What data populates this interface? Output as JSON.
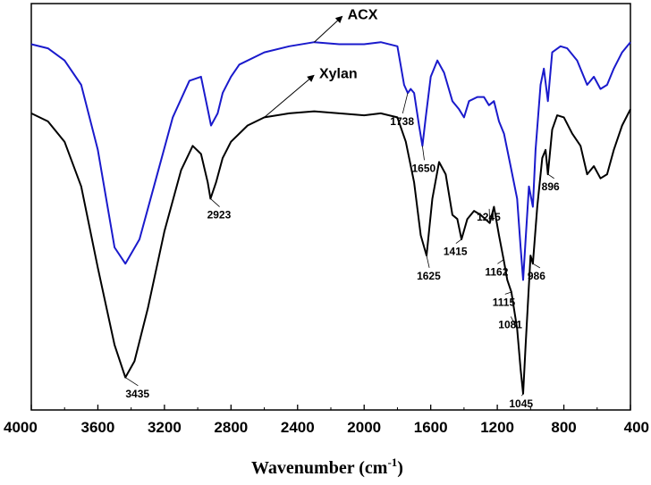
{
  "chart_data": {
    "type": "line",
    "xlabel": "Wavenumber (cm",
    "xlabel_sup": "-1",
    "xlabel_close": ")",
    "xlim": [
      4000,
      400
    ],
    "x_reversed": true,
    "y_axis_visible": false,
    "grid": false,
    "x_ticks": [
      4000,
      3600,
      3200,
      2800,
      2400,
      2000,
      1600,
      1200,
      800,
      400
    ],
    "x_tick_labels": [
      "4000",
      "3600",
      "3200",
      "2800",
      "2400",
      "2000",
      "1600",
      "1200",
      "800",
      "400"
    ],
    "series": [
      {
        "name": "ACX",
        "color": "#1a1acc",
        "points": [
          [
            4000,
            0.9
          ],
          [
            3900,
            0.89
          ],
          [
            3800,
            0.86
          ],
          [
            3700,
            0.8
          ],
          [
            3600,
            0.64
          ],
          [
            3500,
            0.4
          ],
          [
            3435,
            0.36
          ],
          [
            3350,
            0.42
          ],
          [
            3250,
            0.57
          ],
          [
            3150,
            0.72
          ],
          [
            3050,
            0.81
          ],
          [
            2980,
            0.82
          ],
          [
            2940,
            0.74
          ],
          [
            2920,
            0.7
          ],
          [
            2880,
            0.73
          ],
          [
            2850,
            0.78
          ],
          [
            2800,
            0.82
          ],
          [
            2750,
            0.85
          ],
          [
            2600,
            0.88
          ],
          [
            2450,
            0.895
          ],
          [
            2300,
            0.905
          ],
          [
            2150,
            0.9
          ],
          [
            2000,
            0.9
          ],
          [
            1900,
            0.905
          ],
          [
            1800,
            0.895
          ],
          [
            1760,
            0.8
          ],
          [
            1738,
            0.78
          ],
          [
            1720,
            0.79
          ],
          [
            1700,
            0.78
          ],
          [
            1670,
            0.7
          ],
          [
            1650,
            0.65
          ],
          [
            1630,
            0.72
          ],
          [
            1600,
            0.82
          ],
          [
            1560,
            0.86
          ],
          [
            1520,
            0.83
          ],
          [
            1470,
            0.76
          ],
          [
            1430,
            0.74
          ],
          [
            1400,
            0.72
          ],
          [
            1370,
            0.76
          ],
          [
            1320,
            0.77
          ],
          [
            1280,
            0.77
          ],
          [
            1250,
            0.75
          ],
          [
            1220,
            0.76
          ],
          [
            1190,
            0.71
          ],
          [
            1160,
            0.68
          ],
          [
            1120,
            0.6
          ],
          [
            1081,
            0.52
          ],
          [
            1060,
            0.4
          ],
          [
            1045,
            0.32
          ],
          [
            1030,
            0.42
          ],
          [
            1010,
            0.55
          ],
          [
            986,
            0.5
          ],
          [
            970,
            0.64
          ],
          [
            940,
            0.8
          ],
          [
            920,
            0.84
          ],
          [
            896,
            0.76
          ],
          [
            870,
            0.88
          ],
          [
            820,
            0.895
          ],
          [
            780,
            0.89
          ],
          [
            720,
            0.86
          ],
          [
            660,
            0.8
          ],
          [
            620,
            0.82
          ],
          [
            580,
            0.79
          ],
          [
            540,
            0.8
          ],
          [
            500,
            0.84
          ],
          [
            450,
            0.88
          ],
          [
            400,
            0.905
          ]
        ]
      },
      {
        "name": "Xylan",
        "color": "#000000",
        "points": [
          [
            4000,
            0.73
          ],
          [
            3900,
            0.71
          ],
          [
            3800,
            0.66
          ],
          [
            3700,
            0.55
          ],
          [
            3600,
            0.35
          ],
          [
            3500,
            0.16
          ],
          [
            3435,
            0.08
          ],
          [
            3380,
            0.12
          ],
          [
            3300,
            0.25
          ],
          [
            3200,
            0.44
          ],
          [
            3100,
            0.59
          ],
          [
            3030,
            0.65
          ],
          [
            2980,
            0.63
          ],
          [
            2940,
            0.56
          ],
          [
            2923,
            0.52
          ],
          [
            2890,
            0.56
          ],
          [
            2850,
            0.62
          ],
          [
            2800,
            0.66
          ],
          [
            2700,
            0.7
          ],
          [
            2600,
            0.72
          ],
          [
            2450,
            0.73
          ],
          [
            2300,
            0.735
          ],
          [
            2150,
            0.73
          ],
          [
            2000,
            0.725
          ],
          [
            1900,
            0.73
          ],
          [
            1800,
            0.72
          ],
          [
            1750,
            0.66
          ],
          [
            1700,
            0.56
          ],
          [
            1660,
            0.43
          ],
          [
            1625,
            0.38
          ],
          [
            1590,
            0.52
          ],
          [
            1550,
            0.61
          ],
          [
            1510,
            0.58
          ],
          [
            1470,
            0.48
          ],
          [
            1440,
            0.47
          ],
          [
            1415,
            0.42
          ],
          [
            1380,
            0.47
          ],
          [
            1340,
            0.49
          ],
          [
            1300,
            0.48
          ],
          [
            1245,
            0.46
          ],
          [
            1220,
            0.5
          ],
          [
            1190,
            0.43
          ],
          [
            1162,
            0.37
          ],
          [
            1140,
            0.32
          ],
          [
            1115,
            0.29
          ],
          [
            1081,
            0.2
          ],
          [
            1060,
            0.1
          ],
          [
            1045,
            0.04
          ],
          [
            1030,
            0.16
          ],
          [
            1000,
            0.38
          ],
          [
            986,
            0.36
          ],
          [
            960,
            0.5
          ],
          [
            930,
            0.62
          ],
          [
            910,
            0.64
          ],
          [
            896,
            0.58
          ],
          [
            870,
            0.69
          ],
          [
            840,
            0.725
          ],
          [
            800,
            0.72
          ],
          [
            750,
            0.68
          ],
          [
            700,
            0.65
          ],
          [
            660,
            0.58
          ],
          [
            620,
            0.6
          ],
          [
            580,
            0.57
          ],
          [
            540,
            0.58
          ],
          [
            500,
            0.64
          ],
          [
            450,
            0.7
          ],
          [
            400,
            0.74
          ]
        ]
      }
    ],
    "series_annotations": [
      {
        "text": "ACX",
        "series": 0,
        "x": 2300,
        "y": 0.905,
        "label_x": 2100,
        "label_y": 0.975
      },
      {
        "text": "Xylan",
        "series": 1,
        "x": 2600,
        "y": 0.72,
        "label_x": 2270,
        "label_y": 0.83
      }
    ],
    "peak_annotations": [
      {
        "text": "1738",
        "series": 0,
        "x": 1738,
        "y": 0.78,
        "label_x": 1790,
        "label_y": 0.71
      },
      {
        "text": "1650",
        "series": 0,
        "x": 1650,
        "y": 0.65,
        "label_x": 1660,
        "label_y": 0.595
      },
      {
        "text": "2923",
        "series": 1,
        "x": 2923,
        "y": 0.52,
        "label_x": 2890,
        "label_y": 0.48
      },
      {
        "text": "3435",
        "series": 1,
        "x": 3435,
        "y": 0.08,
        "label_x": 3380,
        "label_y": 0.04
      },
      {
        "text": "1625",
        "series": 1,
        "x": 1625,
        "y": 0.38,
        "label_x": 1630,
        "label_y": 0.33
      },
      {
        "text": "1415",
        "series": 1,
        "x": 1415,
        "y": 0.42,
        "label_x": 1470,
        "label_y": 0.39
      },
      {
        "text": "1245",
        "series": 1,
        "x": 1245,
        "y": 0.46,
        "label_x": 1270,
        "label_y": 0.475
      },
      {
        "text": "1162",
        "series": 1,
        "x": 1162,
        "y": 0.37,
        "label_x": 1220,
        "label_y": 0.34
      },
      {
        "text": "1115",
        "series": 1,
        "x": 1115,
        "y": 0.29,
        "label_x": 1175,
        "label_y": 0.265
      },
      {
        "text": "1081",
        "series": 1,
        "x": 1081,
        "y": 0.2,
        "label_x": 1140,
        "label_y": 0.21
      },
      {
        "text": "1045",
        "series": 1,
        "x": 1045,
        "y": 0.04,
        "label_x": 1075,
        "label_y": 0.015
      },
      {
        "text": "986",
        "series": 1,
        "x": 986,
        "y": 0.36,
        "label_x": 965,
        "label_y": 0.33
      },
      {
        "text": "896",
        "series": 1,
        "x": 896,
        "y": 0.58,
        "label_x": 880,
        "label_y": 0.55
      }
    ]
  }
}
